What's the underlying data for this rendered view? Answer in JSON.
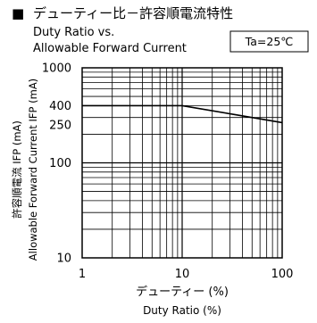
{
  "header": {
    "bullet": "■",
    "title_jp": "デューティー比－許容順電流特性",
    "title_en_line1": "Duty Ratio vs.",
    "title_en_line2": "Allowable Forward Current",
    "condition": "Ta=25℃"
  },
  "chart_data": {
    "type": "line",
    "title": "デューティー比－許容順電流特性",
    "xlabel": "デューティー (%)",
    "xlabel_en": "Duty Ratio (%)",
    "ylabel": "許容順電流 IFP (mA)",
    "ylabel_en": "Allowable Forward Current IFP (mA)",
    "x_scale": "log",
    "y_scale": "log",
    "xlim": [
      1,
      100
    ],
    "ylim": [
      10,
      1000
    ],
    "x_ticks": [
      1,
      10,
      100
    ],
    "x_tick_labels": [
      "1",
      "10",
      "100"
    ],
    "y_ticks": [
      1000,
      400,
      250,
      100,
      10
    ],
    "y_tick_labels": [
      "1000",
      "400",
      "250",
      "100",
      "10"
    ],
    "grid": true,
    "series": [
      {
        "name": "",
        "x": [
          1,
          10,
          100
        ],
        "y": [
          400,
          400,
          265
        ]
      }
    ]
  }
}
